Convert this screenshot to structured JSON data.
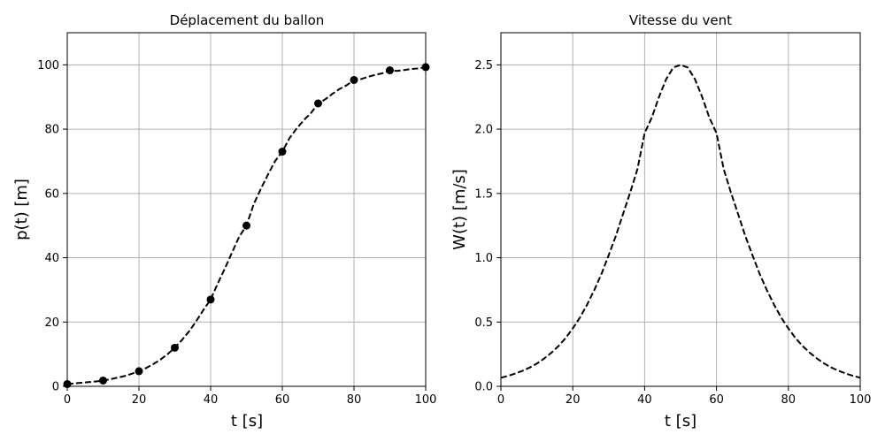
{
  "chart_data": [
    {
      "type": "line",
      "title": "Déplacement du ballon",
      "xlabel": "t [s]",
      "ylabel": "p(t) [m]",
      "xlim": [
        0,
        100
      ],
      "ylim": [
        0,
        110
      ],
      "xticks": [
        0,
        20,
        40,
        60,
        80,
        100
      ],
      "yticks": [
        0,
        20,
        40,
        60,
        80,
        100
      ],
      "xtick_labels": [
        "0",
        "20",
        "40",
        "60",
        "80",
        "100"
      ],
      "ytick_labels": [
        "0",
        "20",
        "40",
        "60",
        "80",
        "100"
      ],
      "grid": true,
      "series": [
        {
          "style": "dashed",
          "color": "#000000",
          "x": [
            0,
            2,
            4,
            6,
            8,
            10,
            12,
            14,
            16,
            18,
            20,
            22,
            24,
            26,
            28,
            30,
            32,
            34,
            36,
            38,
            40,
            42,
            44,
            46,
            48,
            50,
            52,
            54,
            56,
            58,
            60,
            62,
            64,
            66,
            68,
            70,
            72,
            74,
            76,
            78,
            80,
            82,
            84,
            86,
            88,
            90,
            92,
            94,
            96,
            98,
            100
          ],
          "y": [
            0.7,
            0.9,
            1.1,
            1.3,
            1.5,
            1.8,
            2.2,
            2.7,
            3.2,
            3.9,
            4.7,
            5.7,
            6.9,
            8.3,
            10.0,
            12.0,
            14.4,
            17.1,
            20.3,
            23.8,
            27.0,
            32.0,
            36.7,
            41.7,
            46.6,
            50.0,
            56.6,
            61.4,
            65.9,
            70.1,
            73.0,
            77.2,
            80.2,
            82.8,
            85.0,
            88.0,
            89.3,
            91.0,
            92.5,
            93.7,
            95.3,
            95.6,
            96.3,
            96.9,
            97.4,
            98.3,
            98.1,
            98.4,
            98.7,
            98.9,
            99.3
          ]
        },
        {
          "style": "markers",
          "color": "#000000",
          "x": [
            0,
            10,
            20,
            30,
            40,
            50,
            60,
            70,
            80,
            90,
            100
          ],
          "y": [
            0.7,
            1.8,
            4.7,
            12.0,
            27.0,
            50.0,
            73.0,
            88.0,
            95.3,
            98.3,
            99.3
          ]
        }
      ]
    },
    {
      "type": "line",
      "title": "Vitesse du vent",
      "xlabel": "t [s]",
      "ylabel": "W(t) [m/s]",
      "xlim": [
        0,
        100
      ],
      "ylim": [
        0,
        2.75
      ],
      "xticks": [
        0,
        20,
        40,
        60,
        80,
        100
      ],
      "yticks": [
        0.0,
        0.5,
        1.0,
        1.5,
        2.0,
        2.5
      ],
      "xtick_labels": [
        "0",
        "20",
        "40",
        "60",
        "80",
        "100"
      ],
      "ytick_labels": [
        "0.0",
        "0.5",
        "1.0",
        "1.5",
        "2.0",
        "2.5"
      ],
      "grid": true,
      "series": [
        {
          "style": "dashed",
          "color": "#000000",
          "x": [
            0,
            2,
            4,
            6,
            8,
            10,
            12,
            14,
            16,
            18,
            20,
            22,
            24,
            26,
            28,
            30,
            32,
            34,
            36,
            38,
            40,
            42,
            44,
            46,
            48,
            50,
            52,
            54,
            56,
            58,
            60,
            62,
            64,
            66,
            68,
            70,
            72,
            74,
            76,
            78,
            80,
            82,
            84,
            86,
            88,
            90,
            92,
            94,
            96,
            98,
            100
          ],
          "y": [
            0.067,
            0.081,
            0.099,
            0.12,
            0.146,
            0.177,
            0.215,
            0.26,
            0.313,
            0.375,
            0.45,
            0.535,
            0.635,
            0.75,
            0.875,
            1.02,
            1.17,
            1.34,
            1.51,
            1.69,
            1.97,
            2.09,
            2.25,
            2.39,
            2.48,
            2.5,
            2.48,
            2.39,
            2.25,
            2.09,
            1.97,
            1.69,
            1.51,
            1.34,
            1.17,
            1.02,
            0.875,
            0.75,
            0.635,
            0.535,
            0.45,
            0.375,
            0.313,
            0.26,
            0.215,
            0.177,
            0.146,
            0.12,
            0.099,
            0.081,
            0.067
          ]
        }
      ]
    }
  ]
}
